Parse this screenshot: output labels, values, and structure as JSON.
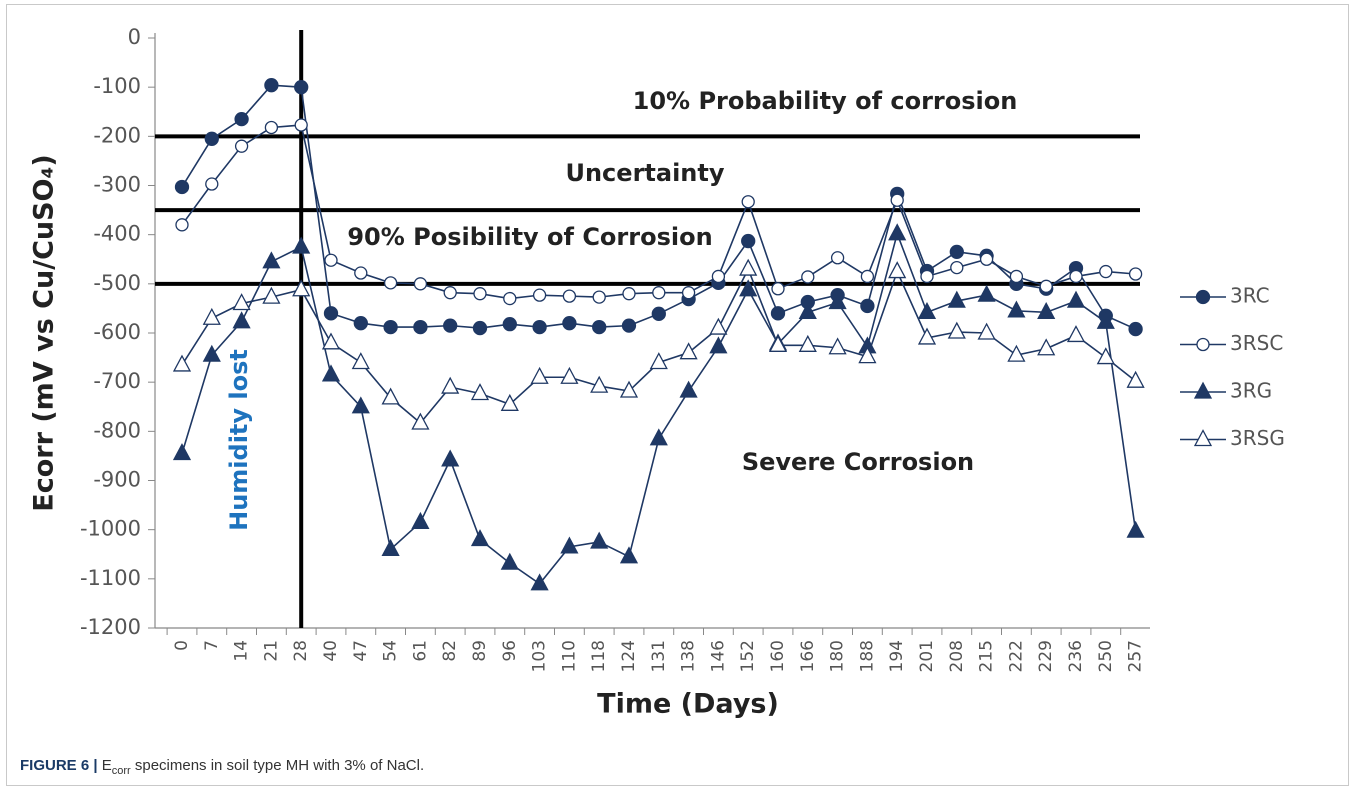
{
  "chart_data": {
    "type": "line",
    "y_label": "Ecorr  (mV  vs  Cu/CuSO₄)",
    "x_label": "Time (Days)",
    "categories": [
      "0",
      "7",
      "14",
      "21",
      "28",
      "40",
      "47",
      "54",
      "61",
      "82",
      "89",
      "96",
      "103",
      "110",
      "118",
      "124",
      "131",
      "138",
      "146",
      "152",
      "160",
      "166",
      "180",
      "188",
      "194",
      "201",
      "208",
      "215",
      "222",
      "229",
      "236",
      "250",
      "257"
    ],
    "series": [
      {
        "name": "3RC",
        "color": "#1f3864",
        "marker": "circle",
        "filled": true,
        "values": [
          -303,
          -205,
          -165,
          -96,
          -100,
          -560,
          -580,
          -588,
          -588,
          -585,
          -590,
          -582,
          -588,
          -580,
          -588,
          -585,
          -561,
          -531,
          -498,
          -413,
          -560,
          -537,
          -523,
          -545,
          -317,
          -474,
          -435,
          -443,
          -500,
          -510,
          -468,
          -565,
          -592
        ]
      },
      {
        "name": "3RSC",
        "color": "#1f3864",
        "marker": "circle",
        "filled": false,
        "values": [
          -380,
          -297,
          -220,
          -182,
          -177,
          -452,
          -478,
          -498,
          -500,
          -518,
          -520,
          -530,
          -523,
          -525,
          -527,
          -520,
          -518,
          -518,
          -485,
          -333,
          -510,
          -486,
          -447,
          -485,
          -330,
          -485,
          -467,
          -450,
          -485,
          -505,
          -485,
          -475,
          -480
        ]
      },
      {
        "name": "3RG",
        "color": "#1f3864",
        "marker": "triangle",
        "filled": true,
        "values": [
          -845,
          -645,
          -577,
          -455,
          -425,
          -685,
          -750,
          -1040,
          -985,
          -858,
          -1020,
          -1068,
          -1110,
          -1035,
          -1025,
          -1055,
          -815,
          -718,
          -628,
          -512,
          -622,
          -558,
          -538,
          -628,
          -398,
          -558,
          -535,
          -523,
          -555,
          -558,
          -535,
          -578,
          -1003
        ]
      },
      {
        "name": "3RSG",
        "color": "#1f3864",
        "marker": "triangle",
        "filled": false,
        "values": [
          -665,
          -570,
          -540,
          -527,
          -512,
          -620,
          -660,
          -732,
          -783,
          -710,
          -723,
          -745,
          -690,
          -690,
          -708,
          -718,
          -660,
          -640,
          -590,
          -470,
          -625,
          -625,
          -630,
          -648,
          -475,
          -610,
          -598,
          -600,
          -645,
          -632,
          -605,
          -650,
          -698
        ]
      }
    ],
    "ylim": [
      -1200,
      0
    ],
    "yticks": [
      0,
      -100,
      -200,
      -300,
      -400,
      -500,
      -600,
      -700,
      -800,
      -900,
      -1000,
      -1100,
      -1200
    ],
    "hlines": [
      -200,
      -350,
      -500
    ],
    "vlines": [
      28
    ],
    "annotations": [
      "10% Probability of corrosion",
      "Uncertainty",
      "90% Posibility of  Corrosion",
      "Severe Corrosion",
      "Humidity lost"
    ],
    "annotation_colors": [
      "#222222",
      "#222222",
      "#222222",
      "#222222",
      "#1e73be"
    ],
    "legend": "right"
  },
  "caption": {
    "label": "FIGURE 6 |",
    "e": "E",
    "sub": "corr",
    "text": " specimens in soil type MH with 3% of NaCl."
  }
}
